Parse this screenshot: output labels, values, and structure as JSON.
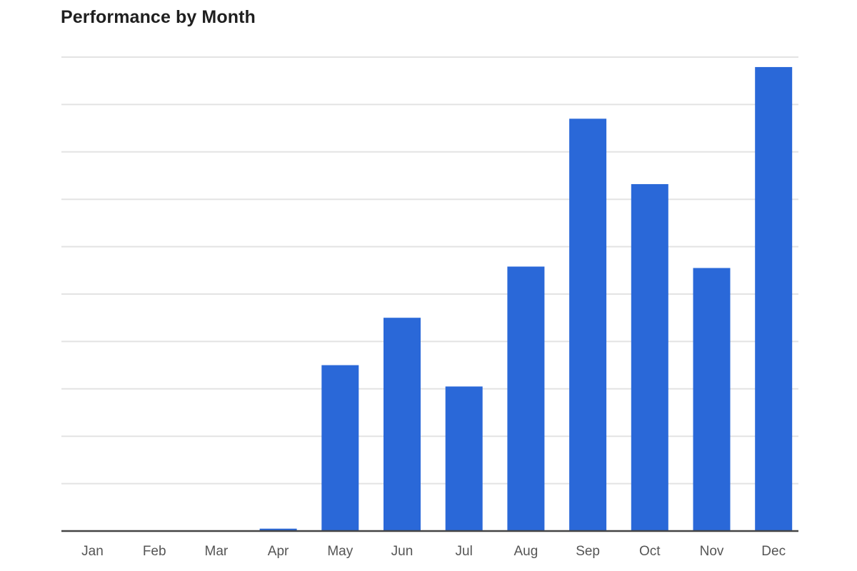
{
  "chart_data": {
    "type": "bar",
    "title": "Performance by Month",
    "xlabel": "",
    "ylabel": "",
    "categories": [
      "Jan",
      "Feb",
      "Mar",
      "Apr",
      "May",
      "Jun",
      "Jul",
      "Aug",
      "Sep",
      "Oct",
      "Nov",
      "Dec"
    ],
    "values": [
      0,
      0,
      0,
      0.05,
      3.5,
      4.5,
      3.05,
      5.58,
      8.7,
      7.32,
      5.55,
      9.79
    ],
    "ylim": [
      0,
      10
    ],
    "grid_lines": 10,
    "grid": true,
    "legend": "none",
    "bar_color": "#2a68d8"
  }
}
